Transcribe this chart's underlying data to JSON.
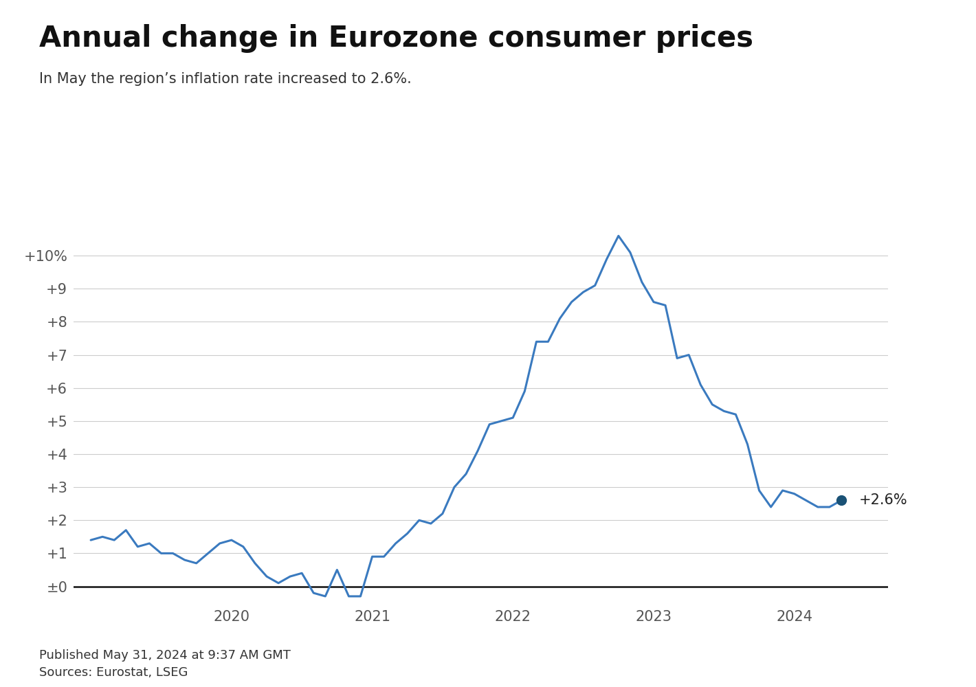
{
  "title": "Annual change in Eurozone consumer prices",
  "subtitle": "In May the region’s inflation rate increased to 2.6%.",
  "published": "Published May 31, 2024 at 9:37 AM GMT",
  "sources": "Sources: Eurostat, LSEG",
  "line_color": "#3a7abf",
  "dot_color": "#1a5276",
  "background_color": "#ffffff",
  "ytick_labels": [
    "±0",
    "+1",
    "+2",
    "+3",
    "+4",
    "+5",
    "+6",
    "+7",
    "+8",
    "+9",
    "+10%"
  ],
  "ytick_values": [
    0,
    1,
    2,
    3,
    4,
    5,
    6,
    7,
    8,
    9,
    10
  ],
  "ylim": [
    -0.55,
    11.5
  ],
  "last_label": "+2.6%",
  "values": [
    1.4,
    1.5,
    1.4,
    1.7,
    1.2,
    1.3,
    1.0,
    1.0,
    0.8,
    0.7,
    1.0,
    1.3,
    1.4,
    1.2,
    0.7,
    0.3,
    0.1,
    0.3,
    0.4,
    -0.2,
    -0.3,
    0.5,
    -0.3,
    -0.3,
    0.9,
    0.9,
    1.3,
    1.6,
    2.0,
    1.9,
    2.2,
    3.0,
    3.4,
    4.1,
    4.9,
    5.0,
    5.1,
    5.9,
    7.4,
    7.4,
    8.1,
    8.6,
    8.9,
    9.1,
    9.9,
    10.6,
    10.1,
    9.2,
    8.6,
    8.5,
    6.9,
    7.0,
    6.1,
    5.5,
    5.3,
    5.2,
    4.3,
    2.9,
    2.4,
    2.9,
    2.8,
    2.6,
    2.4,
    2.4,
    2.6
  ],
  "xtick_positions": [
    12,
    24,
    36,
    48,
    60
  ],
  "xtick_labels": [
    "2020",
    "2021",
    "2022",
    "2023",
    "2024"
  ],
  "title_fontsize": 30,
  "subtitle_fontsize": 15,
  "tick_fontsize": 15,
  "footer_fontsize": 13,
  "annotation_fontsize": 15
}
